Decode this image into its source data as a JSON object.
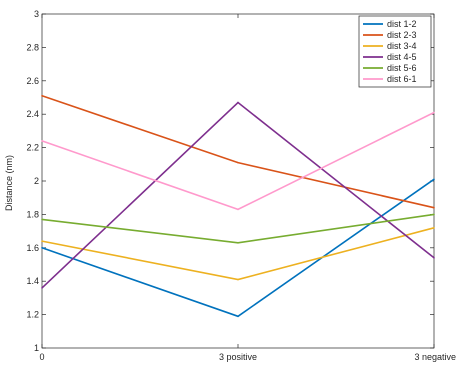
{
  "chart_data": {
    "type": "line",
    "xlabel": "",
    "ylabel": "Distance (nm)",
    "categories": [
      "0",
      "3 positive",
      "3 negative"
    ],
    "ylim": [
      1,
      3
    ],
    "yticks": [
      "1",
      "1.2",
      "1.4",
      "1.6",
      "1.8",
      "2",
      "2.2",
      "2.4",
      "2.6",
      "2.8",
      "3"
    ],
    "grid": false,
    "legend_position": "top-right",
    "series": [
      {
        "name": "dist 1-2",
        "color": "#0072BD",
        "values": [
          1.6,
          1.19,
          2.01
        ]
      },
      {
        "name": "dist 2-3",
        "color": "#D95319",
        "values": [
          2.51,
          2.11,
          1.84
        ]
      },
      {
        "name": "dist 3-4",
        "color": "#EDB120",
        "values": [
          1.64,
          1.41,
          1.72
        ]
      },
      {
        "name": "dist 4-5",
        "color": "#7E2F8E",
        "values": [
          1.36,
          2.47,
          1.54
        ]
      },
      {
        "name": "dist 5-6",
        "color": "#77AC30",
        "values": [
          1.77,
          1.63,
          1.8
        ]
      },
      {
        "name": "dist 6-1",
        "color": "#FF99CC",
        "values": [
          2.24,
          1.83,
          2.41
        ]
      }
    ]
  }
}
